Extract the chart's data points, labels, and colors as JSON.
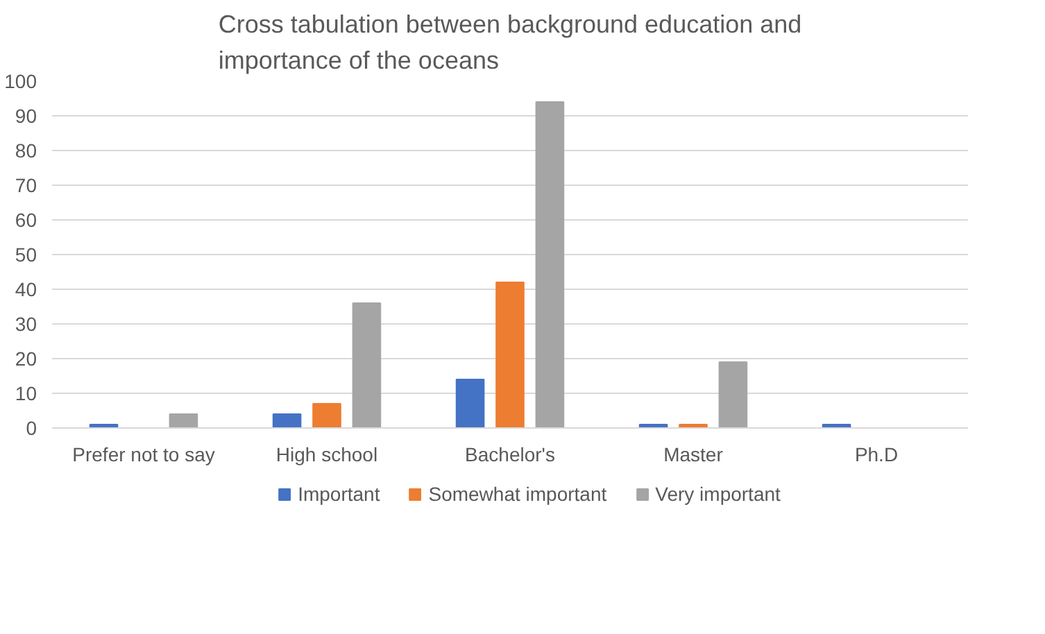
{
  "chart_data": {
    "type": "bar",
    "title": "Cross tabulation between background education and\nimportance of the oceans",
    "categories": [
      "Prefer not to say",
      "High school",
      "Bachelor's",
      "Master",
      "Ph.D"
    ],
    "series": [
      {
        "name": "Important",
        "color": "#4472c4",
        "values": [
          1,
          4,
          14,
          1,
          1
        ]
      },
      {
        "name": "Somewhat important",
        "color": "#ed7d31",
        "values": [
          0,
          7,
          42,
          1,
          0
        ]
      },
      {
        "name": "Very important",
        "color": "#a5a5a5",
        "values": [
          4,
          36,
          94,
          19,
          0
        ]
      }
    ],
    "ylim": [
      0,
      100
    ],
    "yticks": [
      0,
      10,
      20,
      30,
      40,
      50,
      60,
      70,
      80,
      90,
      100
    ],
    "grid": "y",
    "legend": "bottom"
  }
}
